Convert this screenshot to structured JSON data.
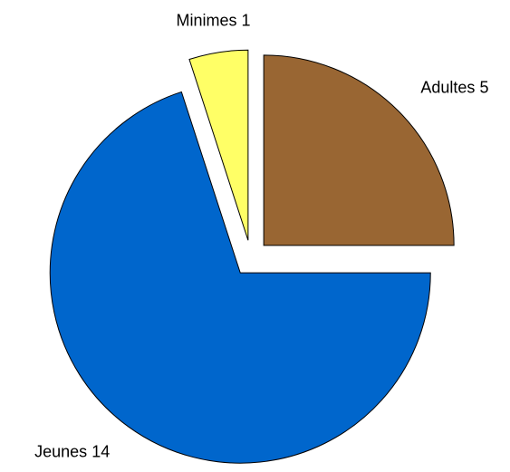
{
  "chart_data": {
    "type": "pie",
    "categories": [
      "Adultes",
      "Jeunes",
      "Minimes"
    ],
    "values": [
      5,
      14,
      1
    ],
    "colors": [
      "#996633",
      "#0066cc",
      "#ffff66"
    ],
    "exploded": true
  }
}
